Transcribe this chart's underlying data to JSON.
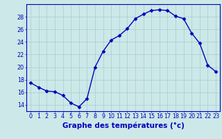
{
  "hours": [
    0,
    1,
    2,
    3,
    4,
    5,
    6,
    7,
    8,
    9,
    10,
    11,
    12,
    13,
    14,
    15,
    16,
    17,
    18,
    19,
    20,
    21,
    22,
    23
  ],
  "temps": [
    17.5,
    16.8,
    16.2,
    16.1,
    15.5,
    14.3,
    13.7,
    15.0,
    20.0,
    22.5,
    24.3,
    25.0,
    26.1,
    27.7,
    28.4,
    29.0,
    29.1,
    29.0,
    28.1,
    27.7,
    25.4,
    23.8,
    20.3,
    19.3
  ],
  "line_color": "#0000bb",
  "marker": "D",
  "marker_size": 2.5,
  "bg_color": "#cce8e8",
  "grid_color": "#aacccc",
  "axis_color": "#0000bb",
  "xlabel": "Graphe des températures (°c)",
  "xlabel_fontsize": 7.5,
  "ylim": [
    13.0,
    30.0
  ],
  "yticks": [
    14,
    16,
    18,
    20,
    22,
    24,
    26,
    28
  ],
  "xticks": [
    0,
    1,
    2,
    3,
    4,
    5,
    6,
    7,
    8,
    9,
    10,
    11,
    12,
    13,
    14,
    15,
    16,
    17,
    18,
    19,
    20,
    21,
    22,
    23
  ],
  "tick_fontsize": 5.8,
  "linewidth": 1.0
}
